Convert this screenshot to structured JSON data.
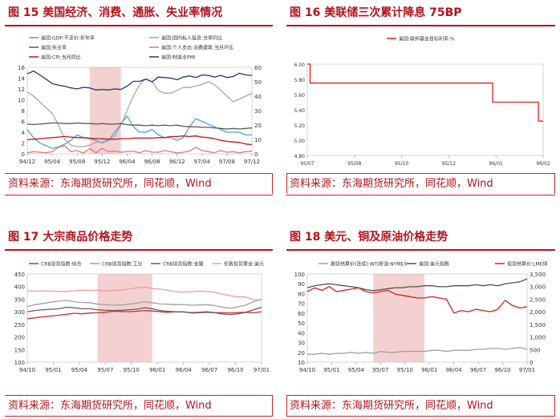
{
  "panels": [
    {
      "title": "图 15   美国经济、消费、通胀、失业率情况",
      "source": "资料来源：东海期货研究所，同花顺，Wind"
    },
    {
      "title": "图 16   美联储三次累计降息 75BP",
      "source": "资料来源：东海期货研究所，同花顺，Wind"
    },
    {
      "title": "图 17   大宗商品价格走势",
      "source": "资料来源：东海期货研究所，同花顺，Wind"
    },
    {
      "title": "图 18   美元、铜及原油价格走势",
      "source": "资料来源：东海期货研究所，同花顺，Wind"
    }
  ],
  "colors": {
    "accent": "#b5121b",
    "shade": "#f2c9c9"
  },
  "chart_data": [
    {
      "type": "line",
      "x_ticks": [
        "94/12",
        "95/04",
        "95/08",
        "95/12",
        "96/04",
        "96/08",
        "96/12",
        "97/04",
        "97/08",
        "97/12"
      ],
      "x_range": [
        0,
        36
      ],
      "shade": [
        10,
        15
      ],
      "ylim": [
        0,
        16
      ],
      "y_ticks": [
        0,
        2,
        4,
        6,
        8,
        10,
        12,
        14,
        16
      ],
      "y2lim": [
        0,
        60
      ],
      "y2_ticks": [
        0,
        10,
        20,
        30,
        40,
        50,
        60
      ],
      "legend": [
        "美国:GDP:不变价:折年率",
        "美国:国内私人投资:当季同比",
        "美国:失业率",
        "美国:个人支出:消费建筑:当月环比",
        "美国:CPI:当月同比",
        "美国:制造业PMI"
      ],
      "series": [
        {
          "name": "美国:GDP:不变价:折年率",
          "color": "#4aa3df",
          "axis": "left",
          "values": [
            4.5,
            3,
            2,
            1.5,
            1,
            1.3,
            1.8,
            2.5,
            3.5,
            3,
            2.8,
            2.5,
            2,
            2.5,
            4,
            5.5,
            7,
            5,
            4,
            4,
            4.5,
            3.5,
            3,
            3,
            2.5,
            3,
            5,
            6.5,
            6,
            5.5,
            5,
            4.5,
            4,
            4,
            4,
            3.5,
            3.5
          ]
        },
        {
          "name": "美国:国内私人投资:当季同比",
          "color": "#a6a6a6",
          "axis": "right",
          "values": [
            43,
            40,
            36,
            32,
            28,
            20,
            10,
            6,
            5,
            5,
            6,
            8,
            8,
            10,
            12,
            20,
            30,
            40,
            48,
            52,
            50,
            44,
            42,
            42,
            44,
            46,
            46,
            47,
            48,
            50,
            48,
            44,
            40,
            36,
            38,
            40,
            42
          ]
        },
        {
          "name": "美国:失业率",
          "color": "#595959",
          "axis": "left",
          "values": [
            5.5,
            5.4,
            5.5,
            5.6,
            5.7,
            5.7,
            5.6,
            5.6,
            5.7,
            5.6,
            5.6,
            5.5,
            5.6,
            5.5,
            5.5,
            5.6,
            5.4,
            5.3,
            5.3,
            5.2,
            5.3,
            5.2,
            5.3,
            5.2,
            5.3,
            5.1,
            5,
            5,
            4.9,
            4.9,
            4.8,
            4.7,
            4.6,
            4.7,
            4.6,
            4.7,
            4.8
          ]
        },
        {
          "name": "美国:个人支出:消费建筑:当月环比",
          "color": "#e37777",
          "axis": "left",
          "values": [
            0.2,
            0.4,
            0.3,
            0.2,
            0.4,
            1.2,
            1.5,
            0.4,
            0.6,
            0.1,
            1,
            0.2,
            1,
            0.4,
            0.5,
            0.3,
            0.4,
            0.5,
            0.2,
            0.6,
            0.3,
            0.3,
            0.6,
            0.4,
            0.2,
            0.3,
            0.5,
            1.2,
            0.6,
            0.4,
            0.2,
            0.6,
            0.3,
            0.4,
            0.2,
            0.4,
            0.5
          ]
        },
        {
          "name": "美国:CPI:当月同比",
          "color": "#c0141c",
          "axis": "left",
          "values": [
            2.6,
            2.7,
            2.8,
            2.9,
            3,
            3.1,
            3.2,
            3.1,
            3,
            3,
            2.9,
            2.8,
            2.8,
            2.7,
            2.7,
            2.8,
            2.8,
            2.9,
            2.9,
            2.9,
            2.9,
            3,
            3,
            3.2,
            3.2,
            3.3,
            3.2,
            3.3,
            3.1,
            3,
            2.8,
            2.5,
            2.3,
            2.2,
            2.1,
            1.8,
            1.7
          ]
        },
        {
          "name": "美国:制造业PMI",
          "color": "#1f3a68",
          "axis": "left",
          "values": [
            14.8,
            15.3,
            14.6,
            13.8,
            13,
            12.7,
            12.5,
            12.2,
            12,
            12.3,
            12.2,
            11.8,
            11.9,
            11.8,
            12,
            11.9,
            12.5,
            13.4,
            13.4,
            13.8,
            13.3,
            14.2,
            14.1,
            14,
            13.7,
            14.2,
            14.4,
            14.1,
            14.6,
            14.5,
            14.2,
            14.5,
            14.1,
            14.3,
            14.9,
            14.6,
            14.5
          ]
        }
      ]
    },
    {
      "type": "line",
      "x_ticks": [
        "95/07",
        "95/08",
        "95/10",
        "95/12",
        "96/01",
        "96/02"
      ],
      "x_range": [
        0,
        5
      ],
      "ylim": [
        4.8,
        6
      ],
      "y_ticks": [
        "4.80",
        "5.00",
        "5.20",
        "5.40",
        "5.60",
        "5.80",
        "6.00"
      ],
      "legend": [
        "美国:联邦基金目标利率:%"
      ],
      "series": [
        {
          "name": "美国:联邦基金目标利率:%",
          "color": "#e02020",
          "points": [
            [
              0,
              6
            ],
            [
              0.06,
              6
            ],
            [
              0.06,
              5.75
            ],
            [
              3.93,
              5.75
            ],
            [
              3.93,
              5.5
            ],
            [
              4.9,
              5.5
            ],
            [
              4.9,
              5.25
            ],
            [
              5,
              5.25
            ]
          ]
        }
      ]
    },
    {
      "type": "line",
      "x_ticks": [
        "94/10",
        "95/01",
        "95/04",
        "95/07",
        "95/10",
        "96/01",
        "96/04",
        "96/07",
        "96/10",
        "97/01"
      ],
      "x_range": [
        0,
        30
      ],
      "shade": [
        9,
        16
      ],
      "ylim": [
        100,
        450
      ],
      "y_ticks": [
        100,
        150,
        200,
        250,
        300,
        350,
        400,
        450
      ],
      "legend": [
        "CRB现货指数:综合",
        "CRB现货指数:工业",
        "CRB现货指数:金属",
        "伦敦现货黄金:美元"
      ],
      "series": [
        {
          "name": "CRB现货指数:综合",
          "color": "#d42a2a",
          "values": [
            272,
            276,
            280,
            283,
            286,
            290,
            294,
            292,
            295,
            296,
            298,
            302,
            301,
            300,
            302,
            305,
            303,
            300,
            298,
            300,
            299,
            297,
            298,
            300,
            297,
            296,
            295,
            297,
            298,
            296,
            300
          ]
        },
        {
          "name": "CRB现货指数:工业",
          "color": "#a0a0a0",
          "values": [
            320,
            328,
            333,
            338,
            342,
            345,
            340,
            337,
            336,
            330,
            328,
            326,
            327,
            330,
            334,
            340,
            336,
            331,
            330,
            328,
            329,
            326,
            327,
            328,
            325,
            318,
            314,
            320,
            327,
            340,
            350
          ]
        },
        {
          "name": "CRB现货指数:金属",
          "color": "#606060",
          "values": [
            300,
            305,
            308,
            310,
            312,
            318,
            316,
            312,
            312,
            308,
            306,
            305,
            306,
            308,
            310,
            316,
            312,
            305,
            302,
            300,
            300,
            295,
            296,
            298,
            296,
            291,
            288,
            292,
            298,
            308,
            318
          ]
        },
        {
          "name": "伦敦现货黄金:美元",
          "color": "#f29a9a",
          "values": [
            383,
            382,
            383,
            382,
            381,
            381,
            383,
            386,
            385,
            386,
            383,
            384,
            386,
            390,
            395,
            398,
            392,
            390,
            385,
            380,
            378,
            380,
            382,
            380,
            377,
            370,
            363,
            360,
            358,
            348,
            347
          ]
        }
      ]
    },
    {
      "type": "line",
      "x_ticks": [
        "94/10",
        "95/01",
        "95/04",
        "95/07",
        "95/10",
        "96/01",
        "96/04",
        "96/07",
        "96/10",
        "97/01"
      ],
      "x_range": [
        0,
        30
      ],
      "shade": [
        9,
        16
      ],
      "ylim": [
        10,
        100
      ],
      "y_ticks": [
        10,
        20,
        30,
        40,
        50,
        60,
        70,
        80,
        90,
        100
      ],
      "y2lim": [
        0,
        3500
      ],
      "y2_ticks": [
        "0",
        "500",
        "1,000",
        "1,500",
        "2,000",
        "2,500",
        "3,000",
        "3,500"
      ],
      "legend": [
        "期货结算价(连续):WTI原油:NYMEX",
        "美国:美元指数",
        "现货结算价:LME铜"
      ],
      "series": [
        {
          "name": "期货结算价(连续):WTI原油:NYMEX",
          "color": "#a0a0a0",
          "axis": "left",
          "values": [
            18,
            18,
            19,
            18,
            19,
            19,
            20,
            19,
            20,
            19,
            21,
            20,
            20,
            21,
            21,
            21,
            21,
            22,
            22,
            21,
            22,
            22,
            22,
            23,
            23,
            24,
            24,
            23,
            24,
            25,
            23
          ]
        },
        {
          "name": "美国:美元指数",
          "color": "#505050",
          "axis": "left",
          "values": [
            86,
            88,
            89,
            90,
            89,
            88,
            87,
            86,
            84,
            83,
            84,
            85,
            86,
            86,
            87,
            87,
            88,
            88,
            87,
            87,
            88,
            88,
            88,
            89,
            88,
            89,
            88,
            90,
            91,
            92,
            95
          ]
        },
        {
          "name": "现货结算价:LME铜",
          "color": "#d42020",
          "axis": "right",
          "values": [
            2800,
            2950,
            2850,
            3000,
            2800,
            2850,
            2900,
            2950,
            2800,
            2750,
            2800,
            2850,
            2700,
            2650,
            2600,
            2550,
            2550,
            2600,
            2550,
            2500,
            1950,
            2050,
            2000,
            2100,
            2050,
            2000,
            2100,
            2450,
            2250,
            2150,
            2200
          ]
        }
      ]
    }
  ]
}
